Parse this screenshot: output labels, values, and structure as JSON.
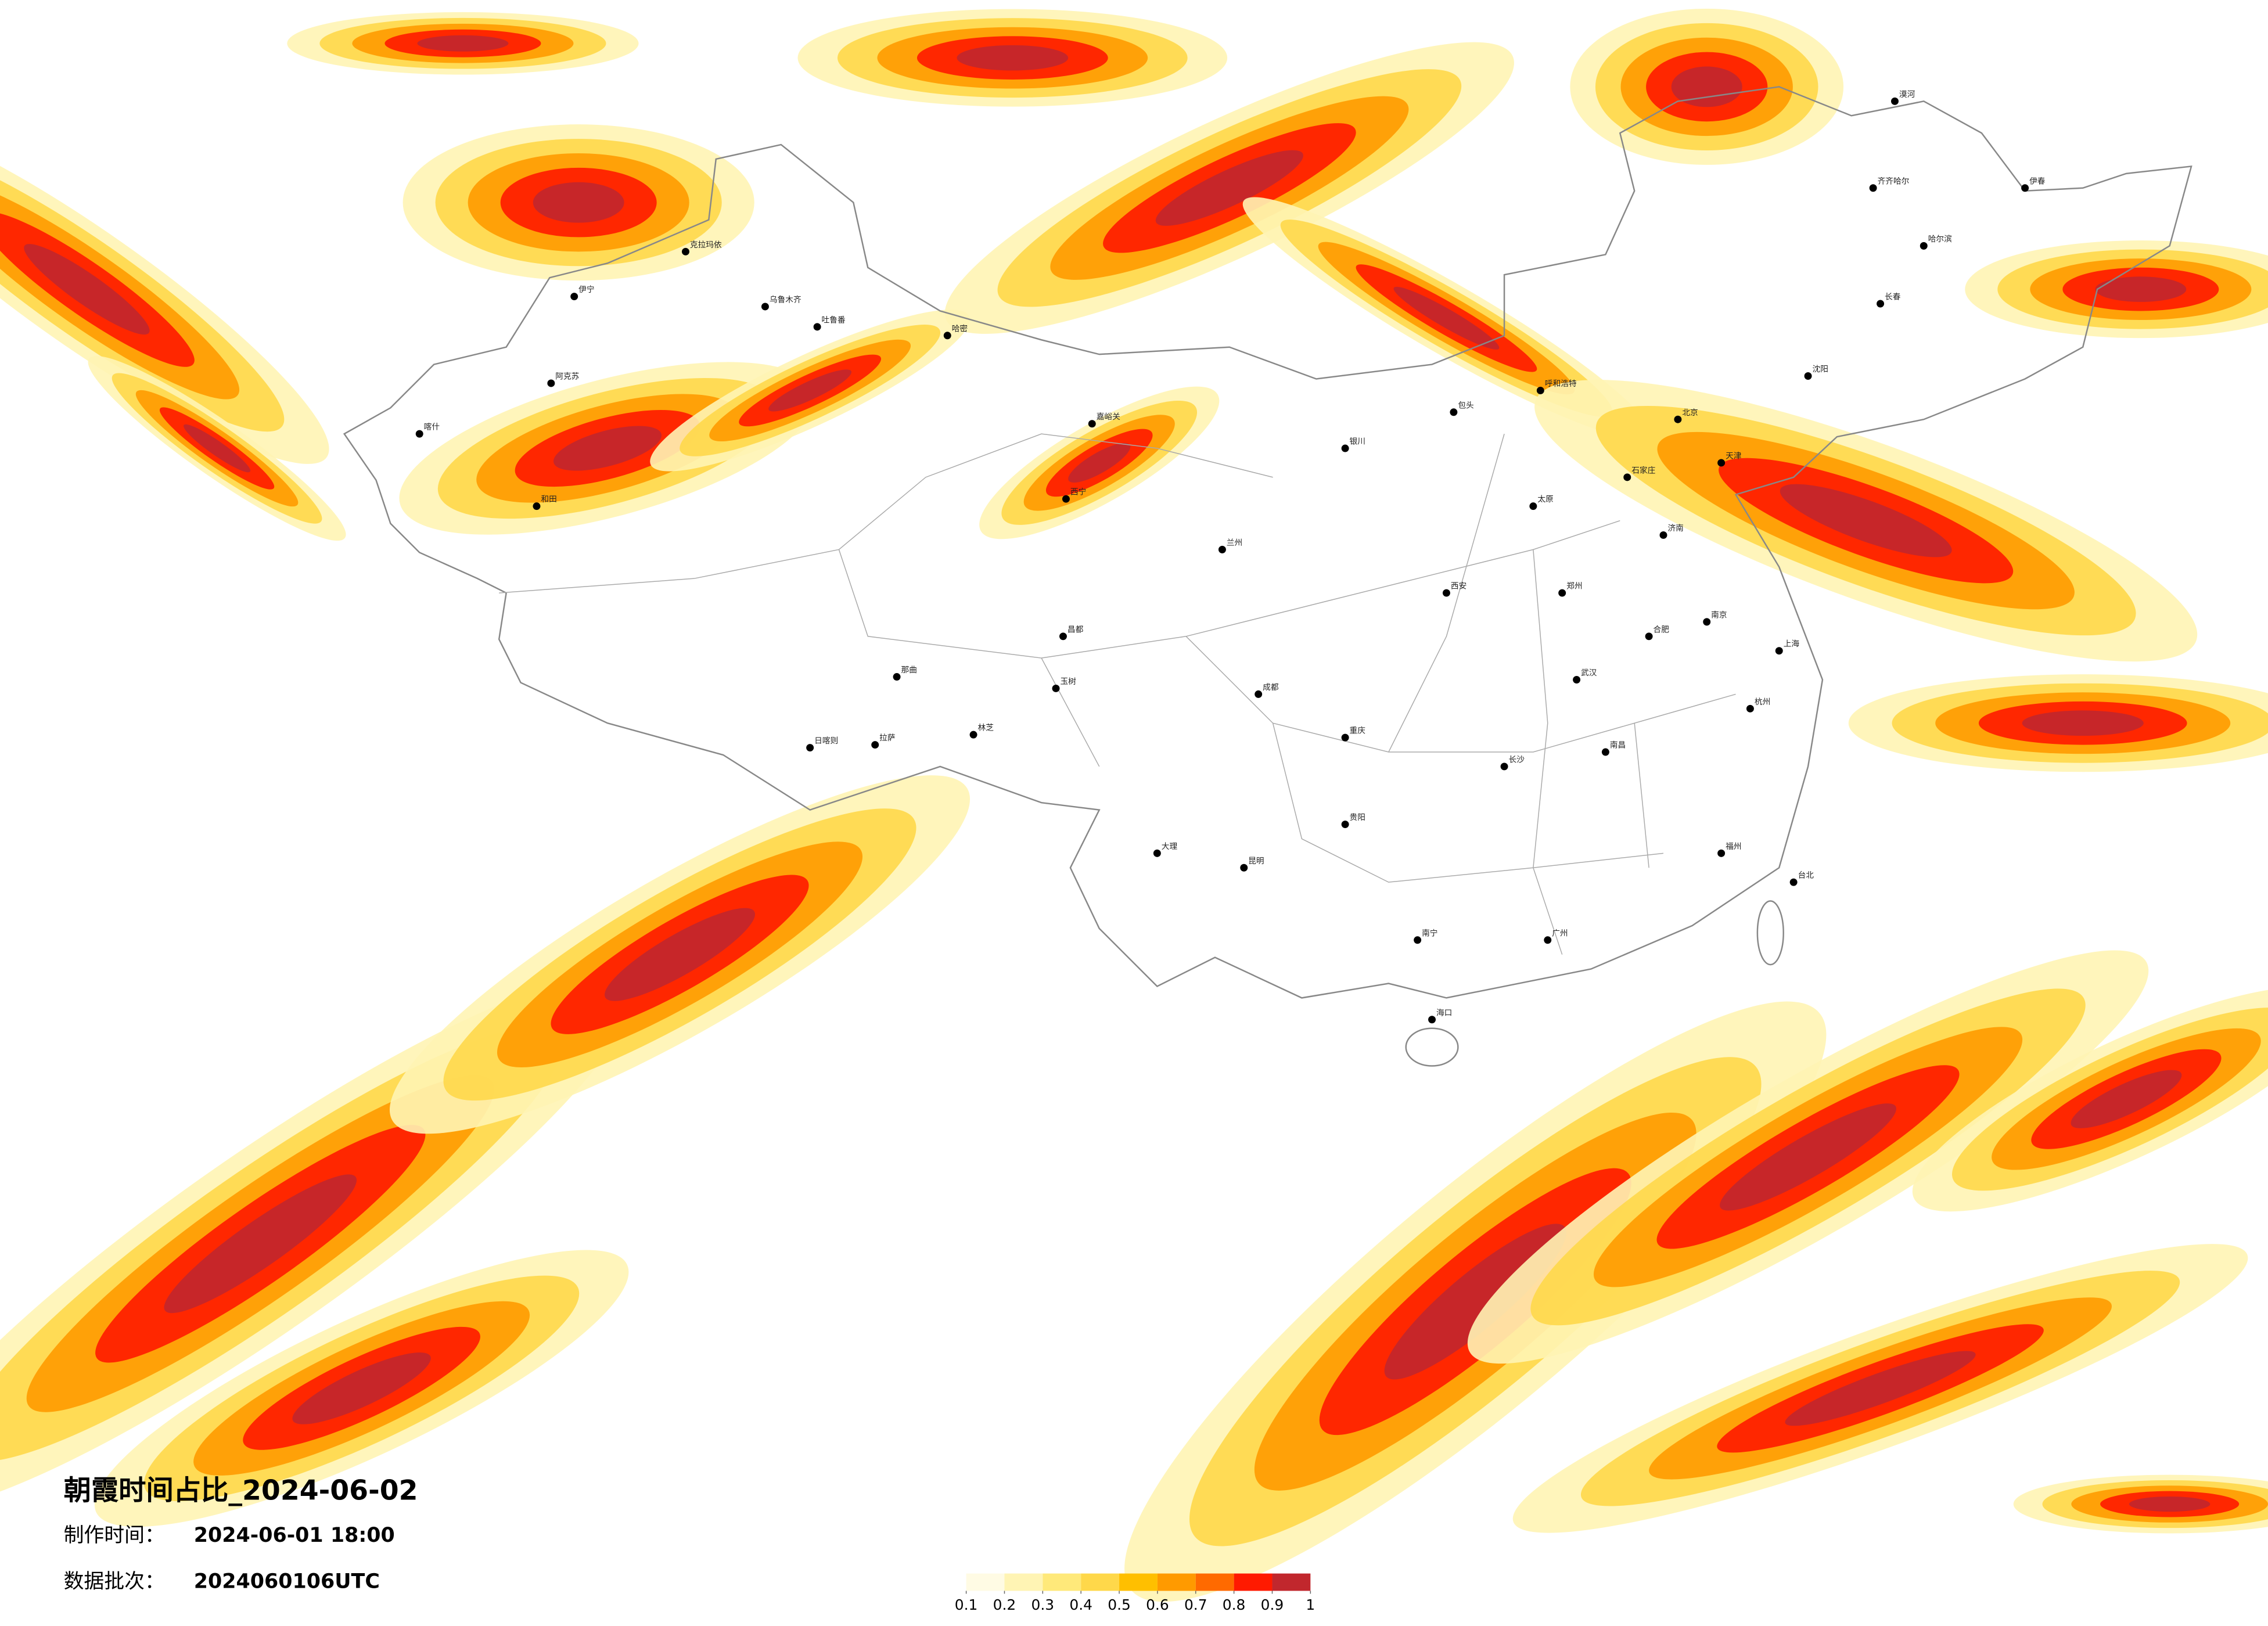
{
  "map": {
    "title": "朝霞时间占比_2024-06-02",
    "made_label": "制作时间：",
    "made_value": "2024-06-01 18:00",
    "batch_label": "数据批次：",
    "batch_value": "2024060106UTC"
  },
  "legend": {
    "ticks": [
      0.1,
      0.2,
      0.3,
      0.4,
      0.5,
      0.6,
      0.7,
      0.8,
      0.9,
      1
    ],
    "colors": [
      "#fffbe4",
      "#fff4b4",
      "#ffe97a",
      "#ffd84a",
      "#ffbf00",
      "#ff9a00",
      "#ff6a00",
      "#ff1a00",
      "#c1272d"
    ]
  },
  "cities": [
    "乌鲁木齐",
    "克拉玛依",
    "伊宁",
    "阿克苏",
    "喀什",
    "和田",
    "吐鲁番",
    "哈密",
    "嘉峪关",
    "西宁",
    "拉萨",
    "日喀则",
    "林芝",
    "那曲",
    "玉树",
    "昌都",
    "呼和浩特",
    "包头",
    "银川",
    "兰州",
    "西安",
    "太原",
    "石家庄",
    "北京",
    "天津",
    "沈阳",
    "长春",
    "哈尔滨",
    "齐齐哈尔",
    "济南",
    "郑州",
    "武汉",
    "成都",
    "重庆",
    "贵阳",
    "昆明",
    "南宁",
    "长沙",
    "南昌",
    "合肥",
    "南京",
    "上海",
    "杭州",
    "福州",
    "广州",
    "海口",
    "台北",
    "漠河",
    "伊春",
    "大理"
  ]
}
